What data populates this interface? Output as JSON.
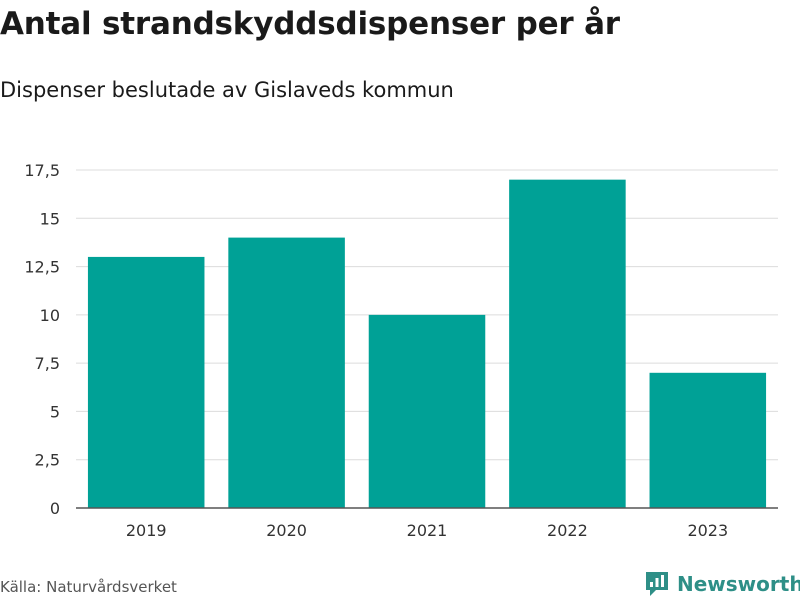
{
  "title": "Antal strandskyddsdispenser per år",
  "subtitle": "Dispenser beslutade av Gislaveds kommun",
  "source": "Källa: Naturvårdsverket",
  "brand": {
    "name": "Newsworthy",
    "color": "#2e8f87"
  },
  "chart_data": {
    "type": "bar",
    "categories": [
      "2019",
      "2020",
      "2021",
      "2022",
      "2023"
    ],
    "values": [
      13,
      14,
      10,
      17,
      7
    ],
    "ylim": [
      0,
      17.5
    ],
    "yticks": [
      0,
      2.5,
      5,
      7.5,
      10,
      12.5,
      15,
      17.5
    ],
    "ytick_labels": [
      "0",
      "2,5",
      "5",
      "7,5",
      "10",
      "12,5",
      "15",
      "17,5"
    ],
    "bar_color": "#00a196",
    "grid": true,
    "xlabel": "",
    "ylabel": ""
  }
}
